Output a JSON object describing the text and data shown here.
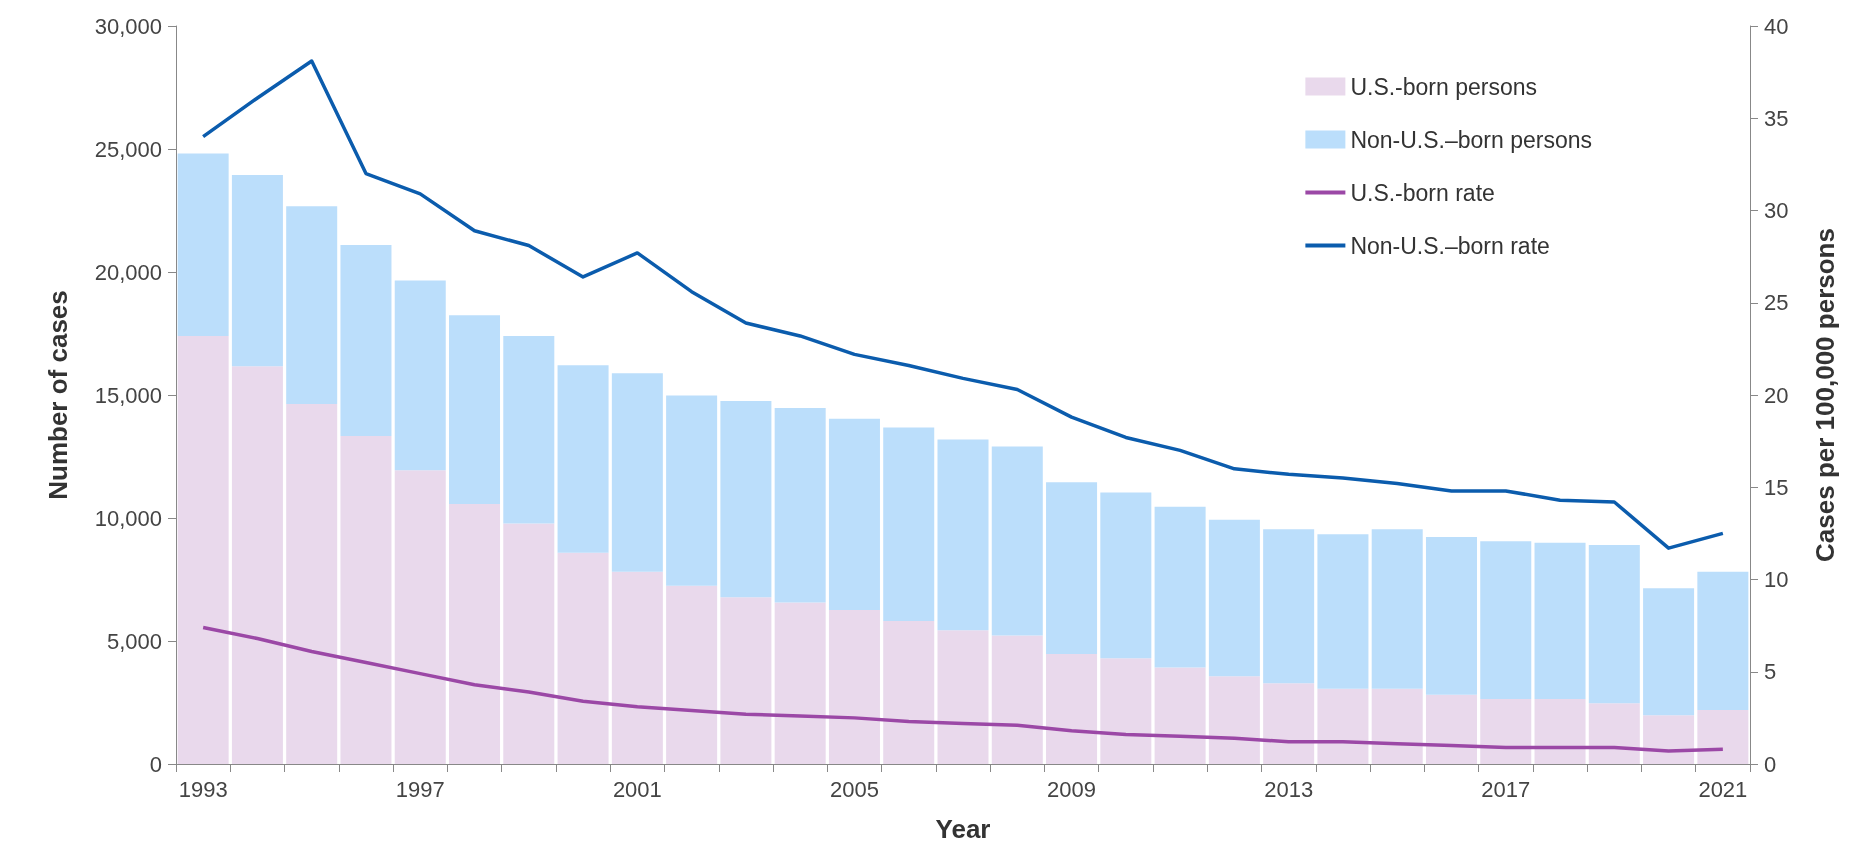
{
  "chart_data": {
    "type": "bar",
    "stacked": true,
    "xlabel": "Year",
    "ylabel": "Number of cases",
    "y2label": "Cases per 100,000 persons",
    "categories": [
      "1993",
      null,
      null,
      null,
      "1997",
      null,
      null,
      null,
      "2001",
      null,
      null,
      null,
      "2005",
      null,
      null,
      null,
      "2009",
      null,
      null,
      null,
      "2013",
      null,
      null,
      null,
      "2017",
      null,
      null,
      null,
      "2021"
    ],
    "series": [
      {
        "name": "U.S.-born persons",
        "color": "#e9d9ec",
        "values": [
          17400,
          16170,
          14630,
          13330,
          11940,
          10570,
          9780,
          8590,
          7820,
          7250,
          6780,
          6560,
          6260,
          5810,
          5440,
          5220,
          4470,
          4300,
          3920,
          3570,
          3280,
          3060,
          3060,
          2820,
          2640,
          2640,
          2470,
          1980,
          2200
        ]
      },
      {
        "name": "Non-U.S.–born persons",
        "color": "#bbdefb",
        "values": [
          7420,
          7770,
          8040,
          7770,
          7710,
          7670,
          7620,
          7620,
          8060,
          7730,
          7980,
          7910,
          7770,
          7870,
          7750,
          7690,
          6980,
          6740,
          6540,
          6360,
          6260,
          6280,
          6480,
          6410,
          6410,
          6350,
          6430,
          5160,
          5620
        ]
      },
      {
        "name": "U.S.-born rate",
        "type": "line",
        "axis": "y2",
        "color": "#9b48a6",
        "values": [
          7.4,
          6.8,
          6.1,
          5.5,
          4.9,
          4.3,
          3.9,
          3.4,
          3.1,
          2.9,
          2.7,
          2.6,
          2.5,
          2.3,
          2.2,
          2.1,
          1.8,
          1.6,
          1.5,
          1.4,
          1.2,
          1.2,
          1.1,
          1.0,
          0.9,
          0.9,
          0.9,
          0.7,
          0.8
        ]
      },
      {
        "name": "Non-U.S.–born rate",
        "type": "line",
        "axis": "y2",
        "color": "#0b5cad",
        "values": [
          34.0,
          36.1,
          38.1,
          32.0,
          30.9,
          28.9,
          28.1,
          26.4,
          27.7,
          25.6,
          23.9,
          23.2,
          22.2,
          21.6,
          20.9,
          20.3,
          18.8,
          17.7,
          17.0,
          16.0,
          15.7,
          15.5,
          15.2,
          14.8,
          14.8,
          14.3,
          14.2,
          11.7,
          12.5
        ]
      }
    ],
    "ylim": [
      0,
      30000
    ],
    "yticks": [
      {
        "value": 0,
        "label": "0"
      },
      {
        "value": 5000,
        "label": "5,000"
      },
      {
        "value": 10000,
        "label": "10,000"
      },
      {
        "value": 15000,
        "label": "15,000"
      },
      {
        "value": 20000,
        "label": "20,000"
      },
      {
        "value": 25000,
        "label": "25,000"
      },
      {
        "value": 30000,
        "label": "30,000"
      }
    ],
    "y2lim": [
      0,
      40
    ],
    "y2ticks": [
      0,
      5,
      10,
      15,
      20,
      25,
      30,
      35,
      40
    ],
    "grid": false,
    "legend": "top right",
    "marker": "none",
    "line_style": "solid"
  }
}
